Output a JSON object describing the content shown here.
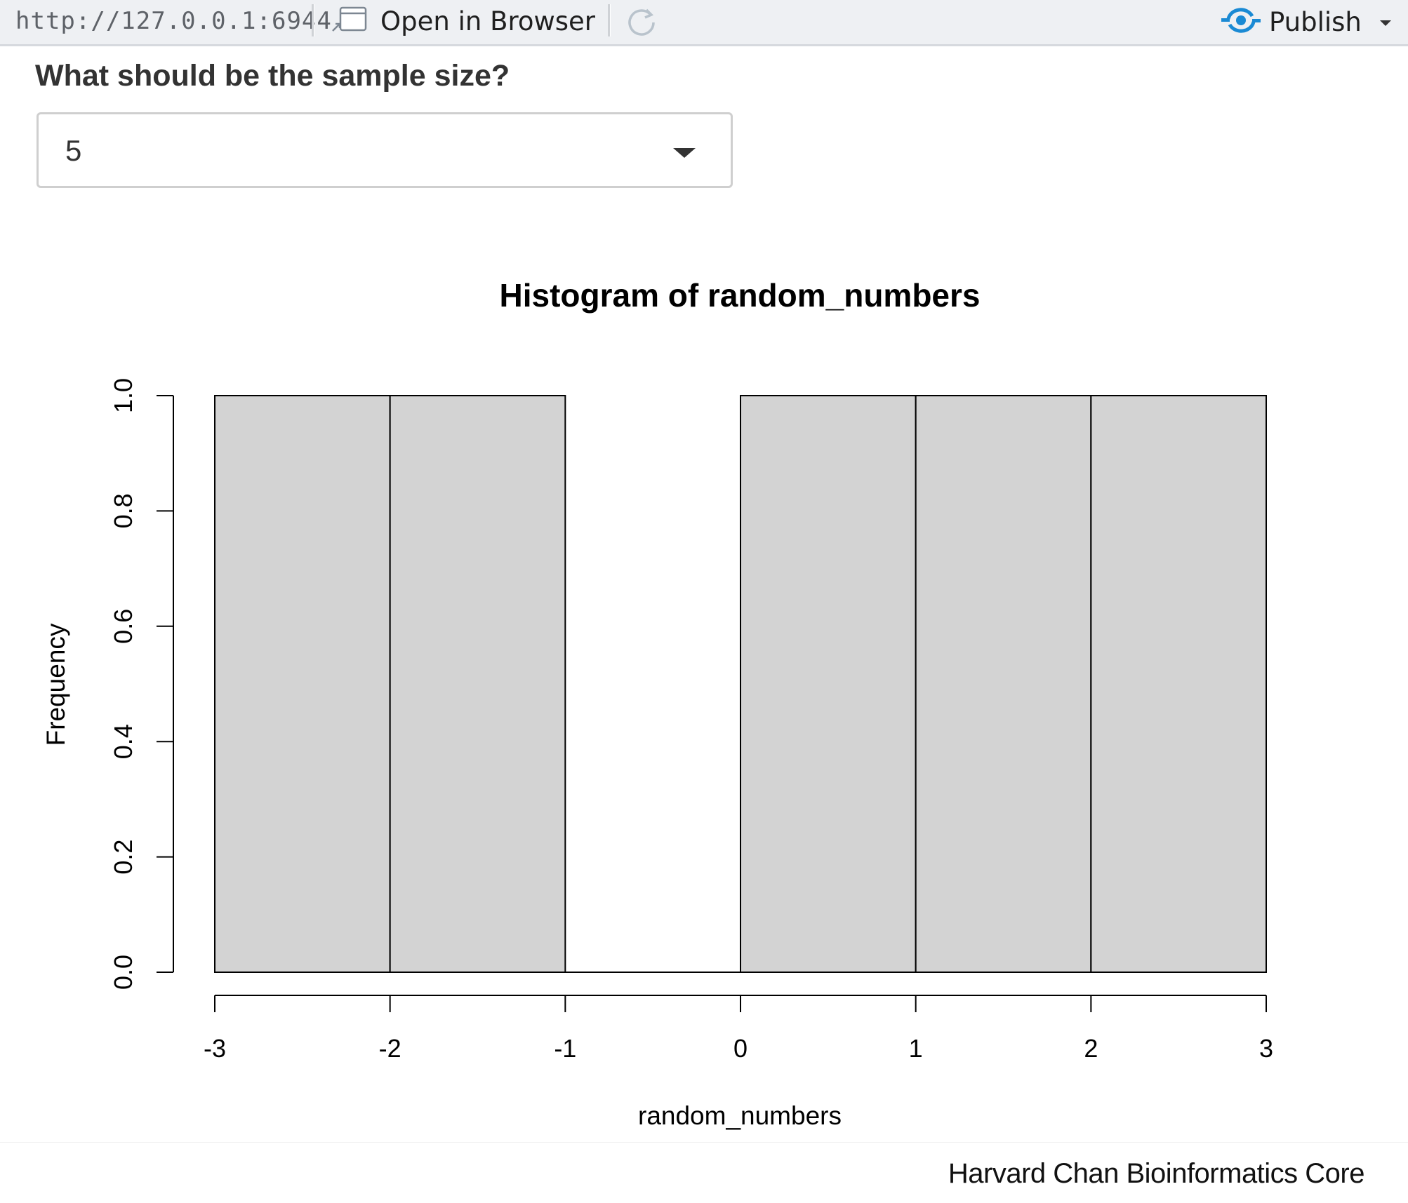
{
  "toolbar": {
    "url": "http://127.0.0.1:6944",
    "open_in_browser": "Open in Browser",
    "publish": "Publish"
  },
  "form": {
    "question": "What should be the sample size?",
    "selected_value": "5"
  },
  "chart_data": {
    "type": "bar",
    "title": "Histogram of random_numbers",
    "xlabel": "random_numbers",
    "ylabel": "Frequency",
    "bins": [
      {
        "from": -3,
        "to": -2,
        "count": 1
      },
      {
        "from": -2,
        "to": -1,
        "count": 1
      },
      {
        "from": -1,
        "to": 0,
        "count": 0
      },
      {
        "from": 0,
        "to": 1,
        "count": 1
      },
      {
        "from": 1,
        "to": 2,
        "count": 1
      },
      {
        "from": 2,
        "to": 3,
        "count": 1
      }
    ],
    "xlim": [
      -3,
      3
    ],
    "ylim": [
      0,
      1
    ],
    "x_ticks": [
      "-3",
      "-2",
      "-1",
      "0",
      "1",
      "2",
      "3"
    ],
    "y_ticks": [
      "0.0",
      "0.2",
      "0.4",
      "0.6",
      "0.8",
      "1.0"
    ],
    "bar_fill": "#d3d3d3",
    "grid": false,
    "legend": "none"
  },
  "footer": {
    "credit": "Harvard Chan Bioinformatics Core"
  },
  "icons": {
    "open_in_browser": "external-window-icon",
    "refresh": "refresh-icon",
    "publish": "publish-icon",
    "dropdown": "caret-down-icon"
  },
  "colors": {
    "toolbar_bg": "#eef0f3",
    "publish_accent": "#1a8ad4",
    "text": "#333333"
  }
}
